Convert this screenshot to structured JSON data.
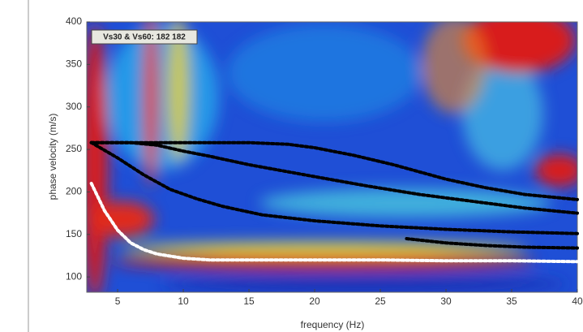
{
  "chart_data": {
    "type": "dispersion",
    "annotation": "Vs30 & Vs60: 182 182",
    "xlabel": "frequency (Hz)",
    "ylabel": "phase velocity (m/s)",
    "xlim": [
      2.65,
      40
    ],
    "ylim": [
      82,
      400
    ],
    "xticks": [
      5,
      10,
      15,
      20,
      25,
      30,
      35,
      40
    ],
    "yticks": [
      100,
      150,
      200,
      250,
      300,
      350,
      400
    ],
    "series": [
      {
        "color": "#ffffff",
        "x": [
          3,
          4,
          5,
          6,
          7,
          8,
          10,
          12,
          15,
          20,
          25,
          30,
          35,
          40
        ],
        "values": [
          210,
          178,
          155,
          140,
          132,
          127,
          122,
          120,
          120,
          120,
          120,
          119,
          119,
          118
        ]
      },
      {
        "color": "#000000",
        "x": [
          3,
          5,
          7,
          9,
          11,
          13,
          16,
          20,
          25,
          30,
          35,
          40
        ],
        "values": [
          258,
          240,
          220,
          203,
          192,
          183,
          173,
          166,
          160,
          156,
          153,
          151
        ]
      },
      {
        "color": "#000000",
        "x": [
          3,
          6,
          8,
          10,
          12,
          15,
          20,
          24,
          28,
          32,
          36,
          40
        ],
        "values": [
          258,
          258,
          255,
          248,
          242,
          232,
          218,
          207,
          197,
          189,
          181,
          175
        ]
      },
      {
        "color": "#000000",
        "x": [
          3,
          10,
          15,
          18,
          20,
          23,
          26,
          30,
          33,
          36,
          40
        ],
        "values": [
          258,
          258,
          258,
          256,
          252,
          243,
          232,
          215,
          205,
          197,
          191
        ]
      },
      {
        "color": "#000000",
        "x": [
          27,
          30,
          33,
          36,
          40
        ],
        "values": [
          145,
          140,
          137,
          135,
          134
        ]
      }
    ]
  }
}
